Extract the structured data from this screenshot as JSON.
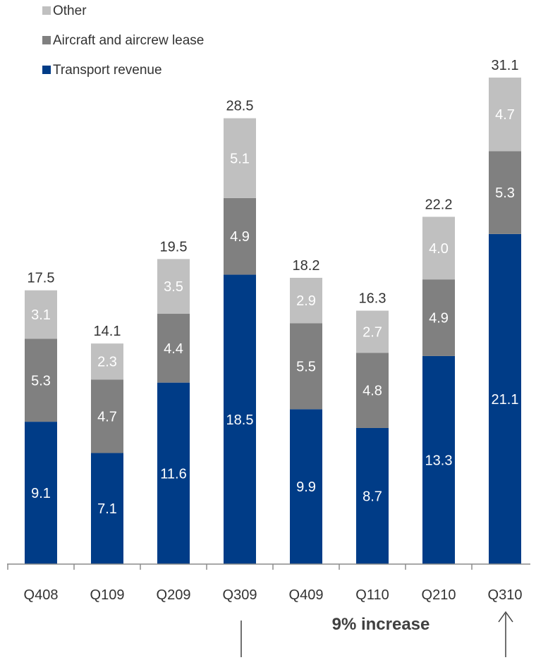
{
  "chart_data": {
    "type": "bar",
    "stacked": true,
    "categories": [
      "Q408",
      "Q109",
      "Q209",
      "Q309",
      "Q409",
      "Q110",
      "Q210",
      "Q310"
    ],
    "series": [
      {
        "name": "Transport revenue",
        "color": "#003c87",
        "values": [
          9.1,
          7.1,
          11.6,
          18.5,
          9.9,
          8.7,
          13.3,
          21.1
        ]
      },
      {
        "name": "Aircraft and aircrew lease",
        "color": "#808080",
        "values": [
          5.3,
          4.7,
          4.4,
          4.9,
          5.5,
          4.8,
          4.9,
          5.3
        ]
      },
      {
        "name": "Other",
        "color": "#c0c0c0",
        "values": [
          3.1,
          2.3,
          3.5,
          5.1,
          2.9,
          2.7,
          4.0,
          4.7
        ]
      }
    ],
    "totals": [
      "17.5",
      "14.1",
      "19.5",
      "28.5",
      "18.2",
      "16.3",
      "22.2",
      "31.1"
    ],
    "value_labels": [
      [
        "9.1",
        "7.1",
        "11.6",
        "18.5",
        "9.9",
        "8.7",
        "13.3",
        "21.1"
      ],
      [
        "5.3",
        "4.7",
        "4.4",
        "4.9",
        "5.5",
        "4.8",
        "4.9",
        "5.3"
      ],
      [
        "3.1",
        "2.3",
        "3.5",
        "5.1",
        "2.9",
        "2.7",
        "4.0",
        "4.7"
      ]
    ],
    "legend_order": [
      "Other",
      "Aircraft and aircrew lease",
      "Transport revenue"
    ],
    "legend_position": "top-left",
    "annotation": "9% increase",
    "ylim": [
      0,
      31.1
    ],
    "grid": false,
    "title": "",
    "xlabel": "",
    "ylabel": ""
  }
}
